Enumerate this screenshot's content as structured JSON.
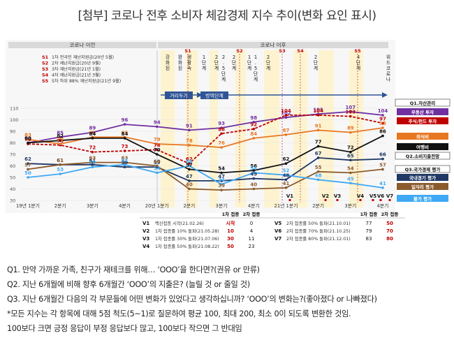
{
  "title": "[첨부] 코로나 전후 소비자 체감경제 지수 추이(변화 요인 표시)",
  "periods": {
    "before": "코로나 이전",
    "after": "코로나 이후"
  },
  "subsidies": [
    {
      "code": "S1",
      "label": "1차 전국민 재난지원금(20년 5월)"
    },
    {
      "code": "S2",
      "label": "2차 재난지원금(20년 9월)"
    },
    {
      "code": "S3",
      "label": "3차 재난지원금(21년 1월)"
    },
    {
      "code": "S4",
      "label": "4차 재난지원금(21년 3월)"
    },
    {
      "code": "S5",
      "label": "5차 하위 88% 재난지원금(21년 9월)"
    }
  ],
  "events": [
    {
      "label": "강화된",
      "kind": "distancing"
    },
    {
      "label": "완화된",
      "kind": "distancing"
    },
    {
      "label": "생활속",
      "kind": "distancing"
    },
    {
      "label": "1단계",
      "kind": "distancing"
    },
    {
      "label": "2단계",
      "kind": "distancing"
    },
    {
      "label": "2.5단계",
      "kind": "distancing"
    },
    {
      "label": "2단계",
      "kind": "distancing"
    },
    {
      "label": "1단계",
      "kind": "distancing"
    },
    {
      "label": "1.5단계",
      "kind": "distancing"
    },
    {
      "label": "2단계",
      "kind": "distancing"
    },
    {
      "label": "2단계",
      "kind": "distancing"
    },
    {
      "label": "4단계",
      "kind": "distancing"
    },
    {
      "label": "위드코로나",
      "kind": "distancing"
    }
  ],
  "arrows": {
    "distancing": "거리두기",
    "stages": "방역단계"
  },
  "vaccine_marks": [
    "V1",
    "V2",
    "V3",
    "V4",
    "V5",
    "V6",
    "V7"
  ],
  "legend": {
    "q1_title": "Q1.자산관리",
    "q1_items": [
      {
        "label": "부동산 투자",
        "color": "#7030A0"
      },
      {
        "label": "주식/펀드 투자",
        "color": "#C00000"
      }
    ],
    "q2_title": "Q2.소비지출전망",
    "q2_items": [
      {
        "label": "외식비",
        "color": "#E87722"
      },
      {
        "label": "여행비",
        "color": "#111111"
      }
    ],
    "q3_title": "Q3.국가경제 평가",
    "q3_items": [
      {
        "label": "국내경기 평가",
        "color": "#1F3864"
      },
      {
        "label": "일자리 평가",
        "color": "#8B5A2B"
      },
      {
        "label": "물가 평가",
        "color": "#3FA9F5"
      }
    ]
  },
  "chart_data": {
    "type": "line",
    "ylim": [
      30,
      110
    ],
    "yticks": [
      30,
      40,
      50,
      60,
      70,
      80,
      90,
      100,
      110
    ],
    "xticks": [
      "19년 1분기",
      "2분기",
      "3분기",
      "4분기",
      "20년 1분기",
      "2분기",
      "3분기",
      "4분기",
      "21년 1분기",
      "2분기",
      "3분기",
      "4분기"
    ],
    "series": [
      {
        "name": "부동산 투자",
        "color": "#7030A0",
        "values": [
          80,
          85,
          89,
          96,
          94,
          91,
          93,
          98,
          102,
          105,
          107,
          104
        ]
      },
      {
        "name": "주식/펀드 투자",
        "color": "#C00000",
        "values": [
          79,
          78,
          72,
          73,
          74,
          62,
          88,
          92,
          104,
          104,
          103,
          97
        ]
      },
      {
        "name": "외식비",
        "color": "#E87722",
        "values": [
          83,
          79,
          85,
          85,
          79,
          78,
          76,
          84,
          87,
          91,
          89,
          93
        ]
      },
      {
        "name": "여행비",
        "color": "#111111",
        "values": [
          80,
          82,
          84,
          84,
          70,
          57,
          54,
          56,
          62,
          77,
          72,
          86
        ]
      },
      {
        "name": "국내경기 평가",
        "color": "#1F3864",
        "values": [
          62,
          61,
          61,
          59,
          59,
          47,
          47,
          49,
          48,
          67,
          65,
          66
        ]
      },
      {
        "name": "일자리 평가",
        "color": "#8B5A2B",
        "values": [
          57,
          61,
          63,
          63,
          60,
          40,
          39,
          40,
          41,
          55,
          54,
          57
        ]
      },
      {
        "name": "물가 평가",
        "color": "#3FA9F5",
        "values": [
          50,
          53,
          59,
          61,
          54,
          60,
          44,
          54,
          52,
          48,
          45,
          41
        ]
      }
    ]
  },
  "vaccine_table": {
    "headers": [
      "",
      "",
      "1차 접종",
      "2차 접종",
      "",
      "",
      "1차 접종",
      "2차 접종"
    ],
    "rows": [
      {
        "code": "V1",
        "desc": "백신접종 시작(21.02.26)",
        "d1": "시작",
        "d2": "0",
        "code2": "V5",
        "desc2": "2차 접종률 50% 돌파(21.10.01)",
        "e1": "77",
        "e2": "50"
      },
      {
        "code": "V2",
        "desc": "1차 접종률 10% 돌파(21.05.28)",
        "d1": "10",
        "d2": "4",
        "code2": "V6",
        "desc2": "2차 접종률 70% 돌파(21.10.25)",
        "e1": "79",
        "e2": "70"
      },
      {
        "code": "V3",
        "desc": "1차 접종률 30% 돌파(21.07.06)",
        "d1": "30",
        "d2": "11",
        "code2": "V7",
        "desc2": "2차 접종률 80% 돌파(21.12.01)",
        "e1": "83",
        "e2": "80"
      },
      {
        "code": "V4",
        "desc": "1차 접종률 50% 돌파(21.08.22)",
        "d1": "50",
        "d2": "23",
        "code2": "",
        "desc2": "",
        "e1": "",
        "e2": ""
      }
    ]
  },
  "notes": [
    "Q1. 만약 가까운 가족, 친구가 재테크를 위해… ‘OOO’을 한다면?(권유 or 만류)",
    "Q2. 지난 6개월에 비해 향후 6개월간 ‘OOO’의 지출은? (늘릴 것 or 줄일 것)",
    "Q3. 지난 6개월간 다음의 각 부문들에 어떤 변화가 있었다고 생각하십니까? ‘OOO’의 변화는?(좋아졌다 or 나빠졌다)",
    "*모든 지수는 각 항목에 대해 5점 척도(5~1)로 질문하여 평균 100, 최대 200, 최소 0이 되도록 변환한 것임.",
    " 100보다 크면 긍정 응답이 부정 응답보다 많고, 100보다 작으면 그 반대임"
  ]
}
